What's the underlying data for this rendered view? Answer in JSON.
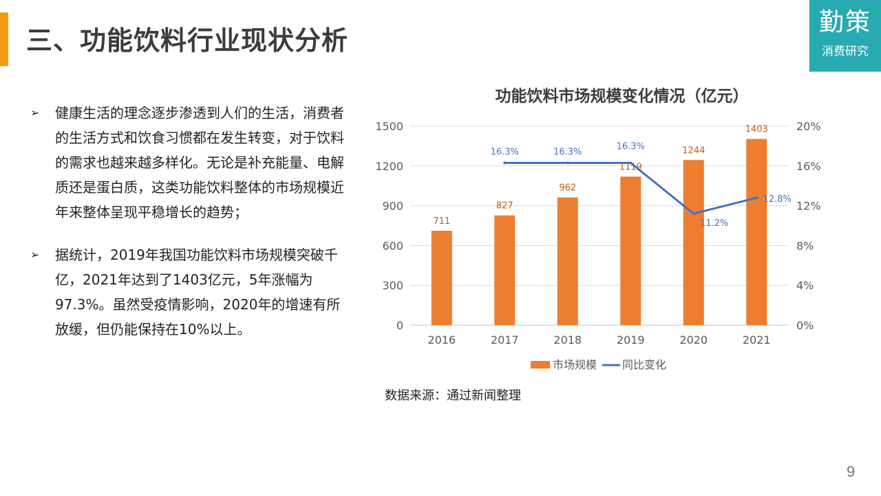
{
  "page": {
    "title": "三、功能饮料行业现状分析",
    "page_number": "9",
    "source_note": "数据来源：通过新闻整理",
    "accent_color": "#f39c12"
  },
  "logo": {
    "main": "勤策",
    "sub": "消费研究",
    "color": "#27aab0"
  },
  "bullets": [
    {
      "icon": "arrow-bullet-icon",
      "text": "健康生活的理念逐步渗透到人们的生活，消费者的生活方式和饮食习惯都在发生转变，对于饮料的需求也越来越多样化。无论是补充能量、电解质还是蛋白质，这类功能饮料整体的市场规模近年来整体呈现平稳增长的趋势；"
    },
    {
      "icon": "arrow-bullet-icon",
      "text": "据统计，2019年我国功能饮料市场规模突破千亿，2021年达到了1403亿元，5年涨幅为97.3%。虽然受疫情影响，2020年的增速有所放缓，但仍能保持在10%以上。"
    }
  ],
  "chart_data": {
    "type": "bar",
    "title": "功能饮料市场规模变化情况（亿元）",
    "categories": [
      "2016",
      "2017",
      "2018",
      "2019",
      "2020",
      "2021"
    ],
    "series": [
      {
        "name": "市场规模",
        "type": "bar",
        "axis": "left",
        "color": "#ed7d31",
        "values": [
          711,
          827,
          962,
          1119,
          1244,
          1403
        ],
        "labels": [
          "711",
          "827",
          "962",
          "1119",
          "1244",
          "1403"
        ]
      },
      {
        "name": "同比变化",
        "type": "line",
        "axis": "right",
        "color": "#4472c4",
        "values": [
          null,
          16.3,
          16.3,
          16.3,
          11.2,
          12.8
        ],
        "labels": [
          "",
          "16.3%",
          "16.3%",
          "16.3%",
          "11.2%",
          "12.8%"
        ]
      }
    ],
    "left_axis": {
      "ylim": [
        0,
        1500
      ],
      "ticks": [
        "0",
        "300",
        "600",
        "900",
        "1200",
        "1500"
      ]
    },
    "right_axis": {
      "ylim": [
        0,
        20
      ],
      "ticks": [
        "0%",
        "4%",
        "8%",
        "12%",
        "16%",
        "20%"
      ]
    },
    "grid": true,
    "legend": "bottom"
  }
}
